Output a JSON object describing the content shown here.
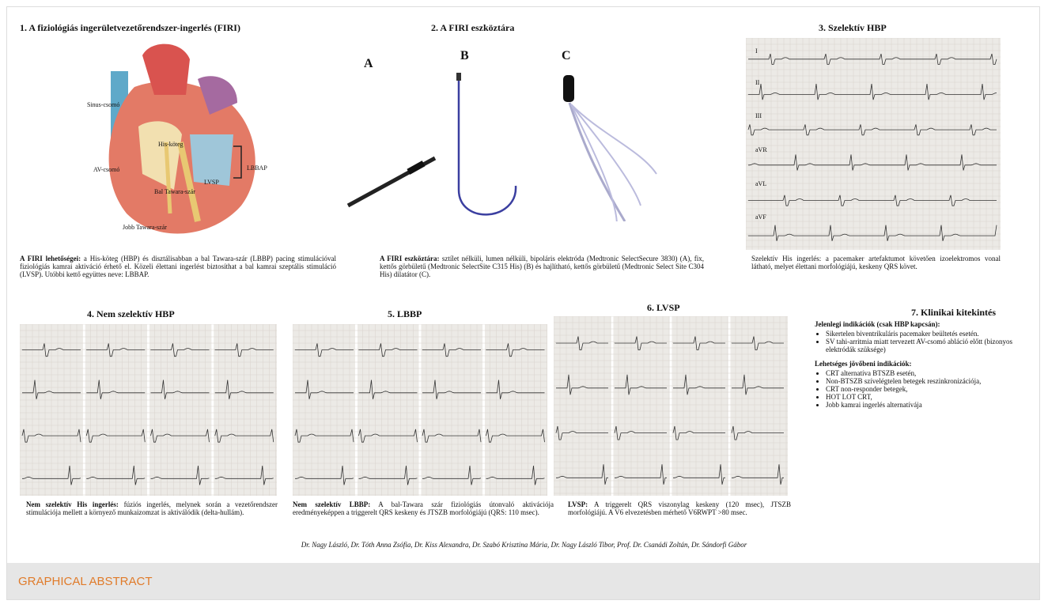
{
  "s1": {
    "title": "1. A fiziológiás ingerületvezetőrendszer-ingerlés (FIRI)",
    "labels": [
      "Sinus-csomó",
      "His-köteg",
      "AV-csomó",
      "Bal Tawara-szár",
      "LVSP",
      "LBBAP",
      "Jobb Tawara-szár"
    ],
    "caption_lead": "A FIRI lehetőségei:",
    "caption": "a His-köteg (HBP) és disztálisabban a bal Tawara-szár (LBBP) pacing stimulációval fiziológiás kamrai aktiváció érhető el. Közeli élettani ingerlést biztosíthat a bal kamrai szeptális stimuláció (LVSP). Utóbbi kettő együttes neve: LBBAP."
  },
  "s2": {
    "title": "2. A FIRI eszköztára",
    "panels": [
      "A",
      "B",
      "C"
    ],
    "caption_lead": "A FIRI eszköztára:",
    "caption": "sztílet nélküli, lumen nélküli, bipoláris elektróda (Medtronic SelectSecure 3830) (A), fix, kettős görbületű (Medtronic SelectSite C315 His) (B) és hajlítható, kettős görbületű (Medtronic Select Site C304 His) dilatátor (C)."
  },
  "s3": {
    "title": "3. Szelektív HBP",
    "leads": [
      "I",
      "II",
      "III",
      "aVR",
      "aVL",
      "aVF"
    ],
    "caption": "Szelektív His ingerlés: a pacemaker artefaktumot követően izoelektromos vonal látható, melyet élettani morfológiájú, keskeny QRS követ."
  },
  "s4": {
    "title": "4. Nem szelektív HBP",
    "caption_lead": "Nem szelektív His ingerlés:",
    "caption": "fúziós ingerlés, melynek során a vezetőrendszer stimulációja mellett a környező munkaizomzat is aktiválódik (delta-hullám)."
  },
  "s5": {
    "title": "5. LBBP",
    "caption_lead": "Nem szelektív LBBP:",
    "caption": "A bal-Tawara szár fiziológiás útonvaló aktivációja eredményeképpen a triggerelt QRS keskeny és JTSZB morfológiájú (QRS: 110 msec)."
  },
  "s6": {
    "title": "6. LVSP",
    "caption_lead": "LVSP:",
    "caption": "A triggerelt QRS viszonylag keskeny (120 msec), JTSZB morfológiájú. A V6 elvezetésben mérhető V6RWPT >80 msec."
  },
  "s7": {
    "title": "7. Klinikai kitekintés",
    "current_title": "Jelenlegi indikációk (csak HBP kapcsán):",
    "current": [
      "Sikertelen biventrikuláris pacemaker beültetés esetén.",
      "SV tahi-arritmia miatt tervezett AV-csomó abláció előtt (bizonyos elektródák szüksége)"
    ],
    "future_title": "Lehetséges jövőbeni indikációk:",
    "future": [
      "CRT alternatíva BTSZB esetén,",
      "Non-BTSZB szívelégtelen betegek reszinkronizációja,",
      "CRT non-responder betegek,",
      "HOT LOT CRT,",
      "Jobb kamrai ingerlés alternatívája"
    ]
  },
  "authors": "Dr. Nagy László, Dr. Tóth Anna Zsófia, Dr. Kiss Alexandra, Dr. Szabó Krisztina Mária, Dr. Nagy László Tibor, Prof. Dr. Csanádi Zoltán, Dr. Sándorfi Gábor",
  "footer": "GRAPHICAL ABSTRACT"
}
